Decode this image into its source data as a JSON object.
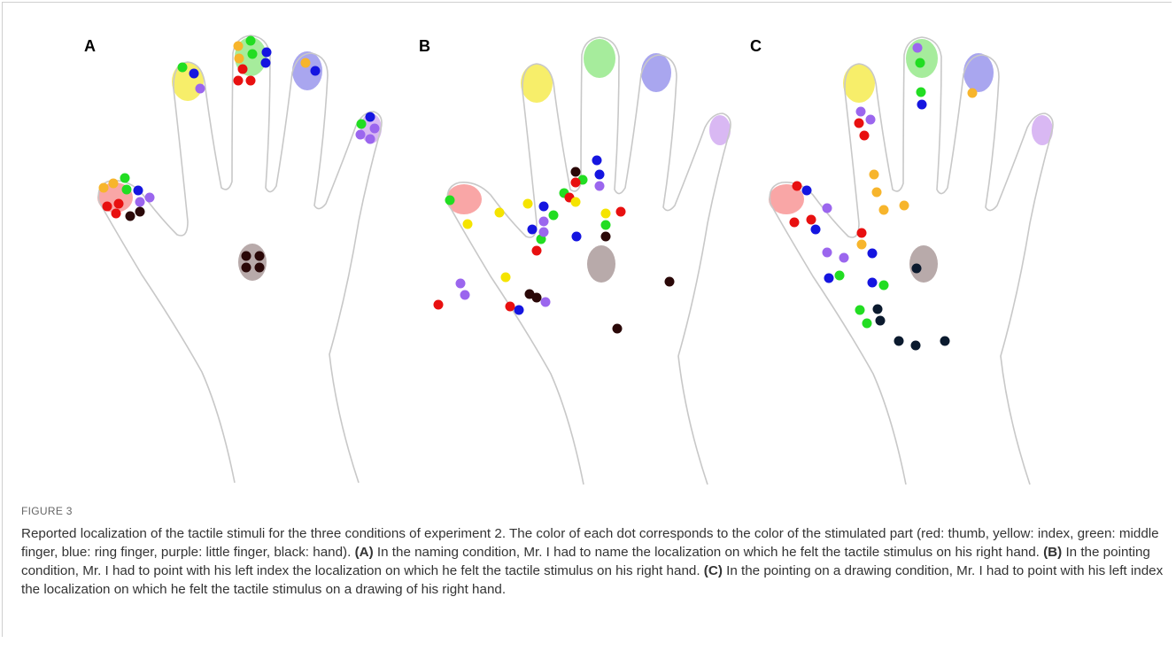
{
  "figure_label": "FIGURE 3",
  "caption_intro": "Reported localization of the tactile stimuli for the three conditions of experiment 2. The color of each dot corresponds to the color of the stimulated part (red: thumb, yellow: index, green: middle finger, blue: ring finger, purple: little finger, black: hand).",
  "panels": [
    {
      "label": "A",
      "caption_label": "(A)",
      "caption": "In the naming condition, Mr. I had to name the localization on which he felt the tactile stimulus on his right hand."
    },
    {
      "label": "B",
      "caption_label": "(B)",
      "caption": "In the pointing condition, Mr. I had to point with his left index the localization on which he felt the tactile stimulus on his right hand."
    },
    {
      "label": "C",
      "caption_label": "(C)",
      "caption": "In the pointing on a drawing condition, Mr. I had to point with his left index the localization on which he felt the tactile stimulus on a drawing of his right hand."
    }
  ]
}
